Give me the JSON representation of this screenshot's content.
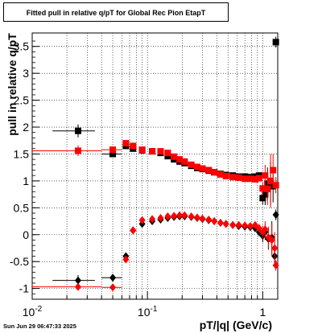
{
  "title": "Fitted pull in relative q/pT for Global Rec Pion EtapT",
  "timestamp": "Sun Jun 29 06:47:33 2025",
  "chart_data": {
    "type": "scatter",
    "title": "Fitted pull in relative q/pT for Global Rec Pion EtapT",
    "xlabel": "pT/|q| (GeV/c)",
    "ylabel": "pull in relative q/pT",
    "x_scale": "log",
    "xlim": [
      0.01,
      1.35
    ],
    "ylim": [
      -1.2,
      3.75
    ],
    "grid": true,
    "x_tick_labels": [
      "10^-2",
      "10^-1",
      "1"
    ],
    "y_tick_labels": [
      "-1",
      "-0.5",
      "0",
      "0.5",
      "1",
      "1.5",
      "2",
      "2.5",
      "3",
      "3.5"
    ],
    "series": [
      {
        "color": "#000000",
        "marker_upper": "square",
        "marker_lower": "diamond",
        "upper": [
          [
            0.025,
            1.93,
            0.01,
            0.12
          ],
          [
            0.05,
            1.5,
            0.01,
            0.05
          ],
          [
            0.065,
            1.65,
            0.003,
            0.04
          ],
          [
            0.075,
            1.6,
            0.003,
            0.03
          ],
          [
            0.09,
            1.57,
            0.005,
            0.02
          ],
          [
            0.11,
            1.55,
            0.005,
            0.02
          ],
          [
            0.13,
            1.52,
            0.005,
            0.02
          ],
          [
            0.15,
            1.46,
            0.005,
            0.02
          ],
          [
            0.17,
            1.4,
            0.005,
            0.02
          ],
          [
            0.19,
            1.36,
            0.005,
            0.02
          ],
          [
            0.21,
            1.33,
            0.005,
            0.02
          ],
          [
            0.24,
            1.28,
            0.008,
            0.02
          ],
          [
            0.27,
            1.24,
            0.008,
            0.02
          ],
          [
            0.3,
            1.22,
            0.008,
            0.02
          ],
          [
            0.34,
            1.19,
            0.01,
            0.02
          ],
          [
            0.38,
            1.16,
            0.01,
            0.02
          ],
          [
            0.43,
            1.13,
            0.01,
            0.02
          ],
          [
            0.48,
            1.11,
            0.01,
            0.02
          ],
          [
            0.55,
            1.1,
            0.01,
            0.02
          ],
          [
            0.62,
            1.08,
            0.01,
            0.02
          ],
          [
            0.7,
            1.08,
            0.01,
            0.02
          ],
          [
            0.78,
            1.07,
            0.01,
            0.03
          ],
          [
            0.86,
            1.08,
            0.01,
            0.04
          ],
          [
            0.93,
            1.1,
            0.01,
            0.06
          ],
          [
            1.0,
            0.68,
            0.01,
            0.12
          ],
          [
            1.05,
            0.75,
            0.01,
            0.2
          ],
          [
            1.1,
            0.95,
            0.01,
            0.3
          ],
          [
            1.17,
            0.95,
            0.01,
            0.4
          ],
          [
            1.23,
            0.9,
            0.01,
            0.3
          ],
          [
            1.3,
            3.58,
            0.01,
            0.1
          ]
        ],
        "lower": [
          [
            0.025,
            -0.85,
            0.01,
            0.1
          ],
          [
            0.05,
            -0.8,
            0.01,
            0.04
          ],
          [
            0.065,
            -0.4,
            0.003,
            0.04
          ],
          [
            0.075,
            0.08,
            0.003,
            0.03
          ],
          [
            0.09,
            0.2,
            0.005,
            0.02
          ],
          [
            0.11,
            0.25,
            0.005,
            0.02
          ],
          [
            0.13,
            0.28,
            0.005,
            0.02
          ],
          [
            0.15,
            0.31,
            0.005,
            0.02
          ],
          [
            0.17,
            0.33,
            0.005,
            0.02
          ],
          [
            0.19,
            0.34,
            0.005,
            0.02
          ],
          [
            0.21,
            0.34,
            0.005,
            0.02
          ],
          [
            0.24,
            0.33,
            0.008,
            0.02
          ],
          [
            0.27,
            0.31,
            0.008,
            0.02
          ],
          [
            0.3,
            0.29,
            0.008,
            0.02
          ],
          [
            0.34,
            0.27,
            0.01,
            0.02
          ],
          [
            0.38,
            0.25,
            0.01,
            0.02
          ],
          [
            0.43,
            0.22,
            0.01,
            0.02
          ],
          [
            0.48,
            0.2,
            0.01,
            0.02
          ],
          [
            0.55,
            0.18,
            0.01,
            0.02
          ],
          [
            0.62,
            0.16,
            0.01,
            0.02
          ],
          [
            0.7,
            0.15,
            0.01,
            0.02
          ],
          [
            0.78,
            0.14,
            0.01,
            0.03
          ],
          [
            0.86,
            0.12,
            0.01,
            0.05
          ],
          [
            0.93,
            0.05,
            0.01,
            0.08
          ],
          [
            1.0,
            -0.02,
            0.01,
            0.12
          ],
          [
            1.05,
            0.05,
            0.01,
            0.15
          ],
          [
            1.12,
            -0.08,
            0.01,
            0.2
          ],
          [
            1.2,
            -0.05,
            0.01,
            0.3
          ],
          [
            1.27,
            -0.4,
            0.01,
            0.2
          ],
          [
            1.3,
            0.37,
            0.01,
            0.1
          ]
        ]
      },
      {
        "color": "#ff0000",
        "marker_upper": "square",
        "marker_lower": "diamond",
        "upper": [
          [
            0.025,
            1.56,
            0.015,
            0.1
          ],
          [
            0.05,
            1.58,
            0.01,
            0.05
          ],
          [
            0.065,
            1.7,
            0.003,
            0.05
          ],
          [
            0.075,
            1.65,
            0.003,
            0.04
          ],
          [
            0.09,
            1.58,
            0.005,
            0.03
          ],
          [
            0.11,
            1.55,
            0.005,
            0.03
          ],
          [
            0.13,
            1.55,
            0.005,
            0.02
          ],
          [
            0.15,
            1.52,
            0.005,
            0.02
          ],
          [
            0.17,
            1.45,
            0.005,
            0.02
          ],
          [
            0.19,
            1.4,
            0.005,
            0.02
          ],
          [
            0.21,
            1.36,
            0.005,
            0.02
          ],
          [
            0.24,
            1.3,
            0.008,
            0.02
          ],
          [
            0.27,
            1.26,
            0.008,
            0.02
          ],
          [
            0.3,
            1.23,
            0.008,
            0.02
          ],
          [
            0.34,
            1.2,
            0.01,
            0.02
          ],
          [
            0.38,
            1.16,
            0.01,
            0.02
          ],
          [
            0.43,
            1.12,
            0.01,
            0.02
          ],
          [
            0.48,
            1.09,
            0.01,
            0.02
          ],
          [
            0.55,
            1.07,
            0.01,
            0.02
          ],
          [
            0.62,
            1.06,
            0.01,
            0.02
          ],
          [
            0.7,
            1.04,
            0.01,
            0.02
          ],
          [
            0.78,
            1.04,
            0.01,
            0.03
          ],
          [
            0.86,
            1.03,
            0.01,
            0.04
          ],
          [
            0.93,
            1.05,
            0.01,
            0.06
          ],
          [
            1.0,
            0.86,
            0.01,
            0.12
          ],
          [
            1.05,
            1.1,
            0.01,
            0.2
          ],
          [
            1.1,
            0.85,
            0.01,
            0.3
          ],
          [
            1.17,
            1.0,
            0.01,
            0.5
          ],
          [
            1.23,
            1.2,
            0.01,
            0.3
          ],
          [
            1.3,
            0.92,
            0.01,
            0.15
          ]
        ],
        "lower": [
          [
            0.025,
            -0.97,
            0.015,
            0.06
          ],
          [
            0.05,
            -0.98,
            0.01,
            0.04
          ],
          [
            0.065,
            -0.46,
            0.003,
            0.04
          ],
          [
            0.075,
            0.08,
            0.003,
            0.03
          ],
          [
            0.09,
            0.27,
            0.005,
            0.03
          ],
          [
            0.11,
            0.29,
            0.005,
            0.02
          ],
          [
            0.13,
            0.31,
            0.005,
            0.02
          ],
          [
            0.15,
            0.34,
            0.005,
            0.02
          ],
          [
            0.17,
            0.35,
            0.005,
            0.02
          ],
          [
            0.19,
            0.36,
            0.005,
            0.02
          ],
          [
            0.21,
            0.36,
            0.005,
            0.02
          ],
          [
            0.24,
            0.34,
            0.008,
            0.02
          ],
          [
            0.27,
            0.32,
            0.008,
            0.02
          ],
          [
            0.3,
            0.3,
            0.008,
            0.02
          ],
          [
            0.34,
            0.28,
            0.01,
            0.02
          ],
          [
            0.38,
            0.25,
            0.01,
            0.02
          ],
          [
            0.43,
            0.22,
            0.01,
            0.02
          ],
          [
            0.48,
            0.2,
            0.01,
            0.02
          ],
          [
            0.55,
            0.18,
            0.01,
            0.02
          ],
          [
            0.62,
            0.18,
            0.01,
            0.02
          ],
          [
            0.7,
            0.17,
            0.01,
            0.03
          ],
          [
            0.78,
            0.16,
            0.01,
            0.04
          ],
          [
            0.86,
            0.18,
            0.01,
            0.05
          ],
          [
            0.93,
            0.12,
            0.01,
            0.08
          ],
          [
            1.0,
            0.05,
            0.01,
            0.12
          ],
          [
            1.05,
            0.1,
            0.01,
            0.15
          ],
          [
            1.12,
            -0.05,
            0.01,
            0.2
          ],
          [
            1.2,
            -0.1,
            0.01,
            0.3
          ],
          [
            1.27,
            -0.25,
            0.01,
            0.3
          ],
          [
            1.3,
            -0.57,
            0.01,
            0.1
          ]
        ]
      }
    ]
  }
}
